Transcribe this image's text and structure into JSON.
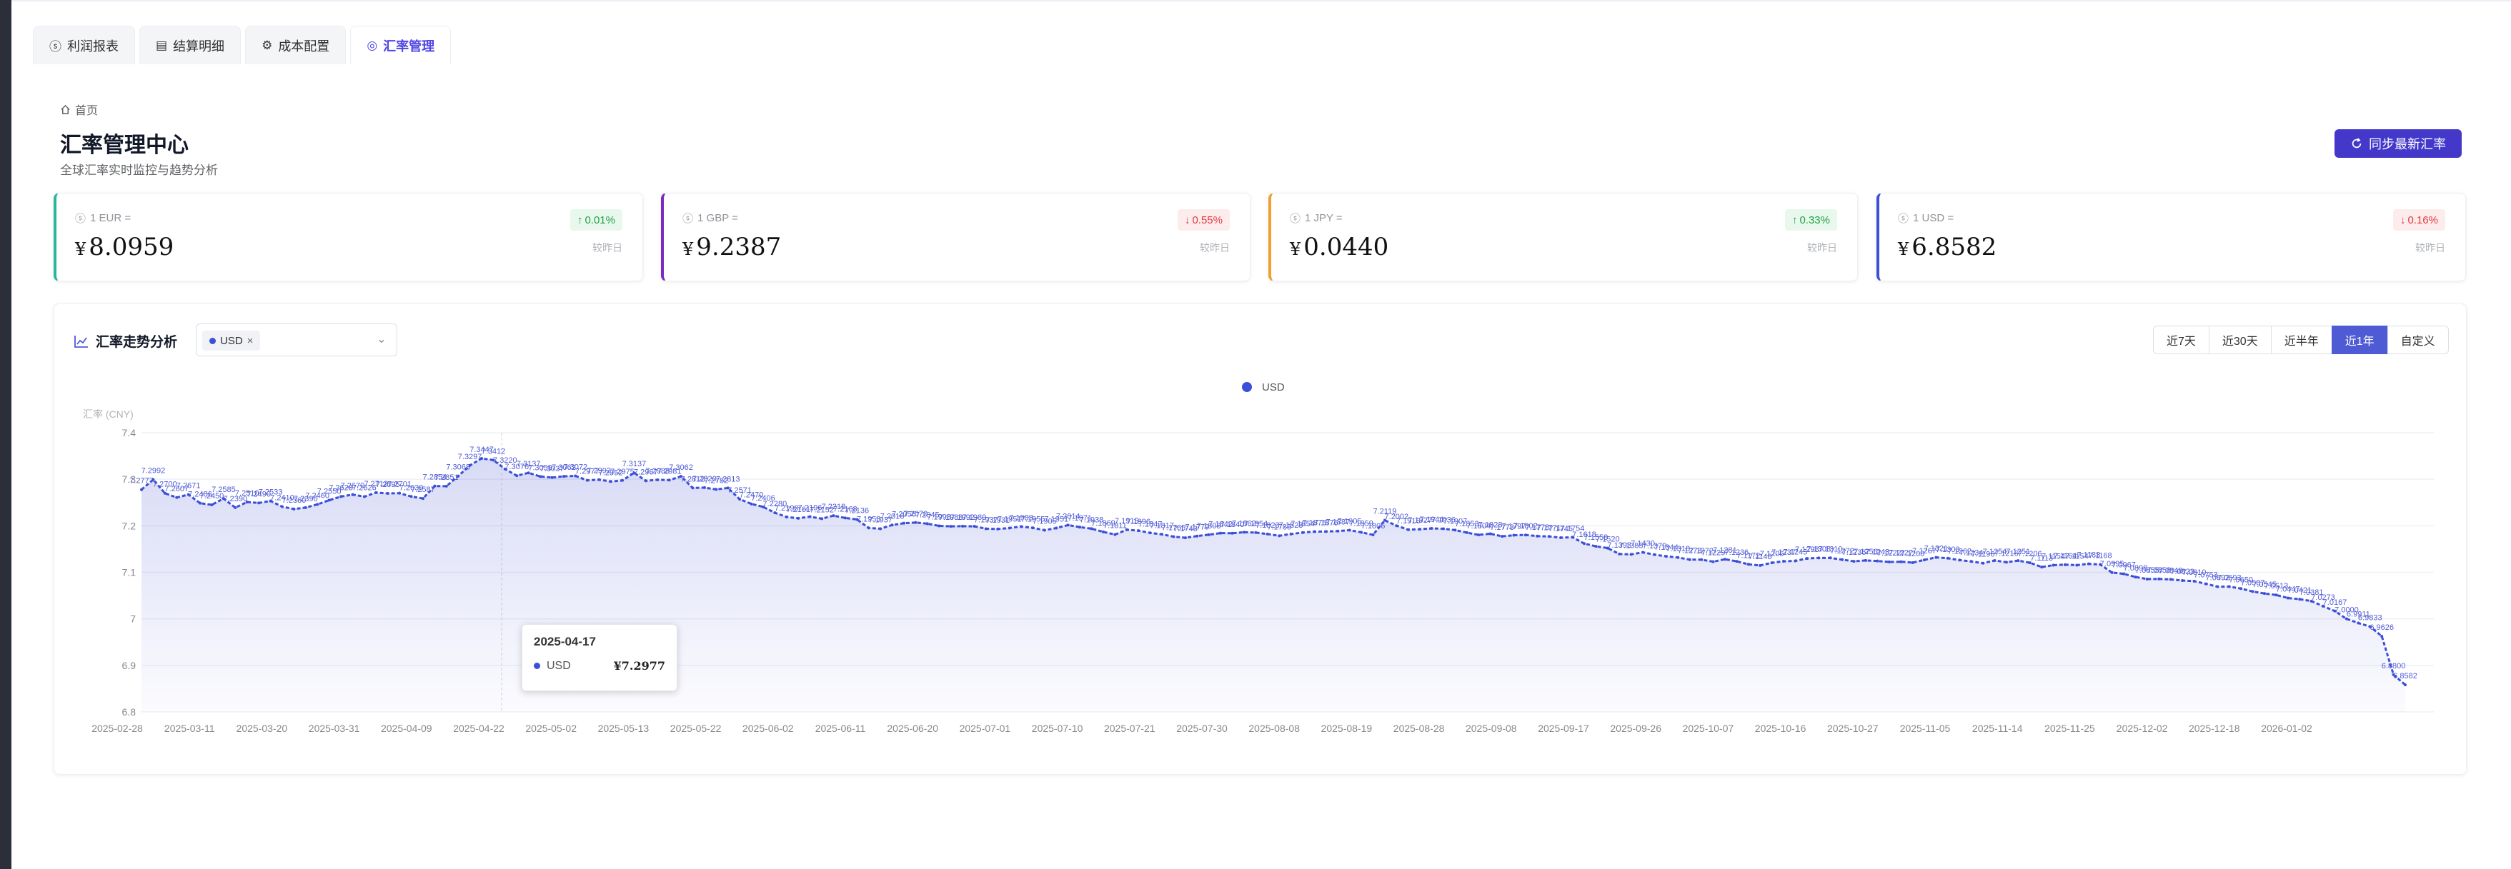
{
  "tabs": [
    {
      "label": "利润报表",
      "icon": "dollar-circle-icon"
    },
    {
      "label": "结算明细",
      "icon": "document-icon"
    },
    {
      "label": "成本配置",
      "icon": "gear-icon"
    },
    {
      "label": "汇率管理",
      "icon": "globe-icon",
      "active": true
    }
  ],
  "breadcrumb": {
    "home": "首页"
  },
  "header": {
    "title": "汇率管理中心",
    "subtitle": "全球汇率实时监控与趋势分析",
    "sync_label": "同步最新汇率"
  },
  "rate_cards": [
    {
      "label": "1 EUR =",
      "symbol": "¥",
      "value": "8.0959",
      "change": "0.01%",
      "direction": "up",
      "compare": "较昨日",
      "color": "#2bb5a0"
    },
    {
      "label": "1 GBP =",
      "symbol": "¥",
      "value": "9.2387",
      "change": "0.55%",
      "direction": "down",
      "compare": "较昨日",
      "color": "#7b2cbf"
    },
    {
      "label": "1 JPY =",
      "symbol": "¥",
      "value": "0.0440",
      "change": "0.33%",
      "direction": "up",
      "compare": "较昨日",
      "color": "#f0a030"
    },
    {
      "label": "1 USD =",
      "symbol": "¥",
      "value": "6.8582",
      "change": "0.16%",
      "direction": "down",
      "compare": "较昨日",
      "color": "#3b4fd9"
    }
  ],
  "chart_panel": {
    "title": "汇率走势分析",
    "selected_currency": "USD",
    "ranges": [
      "近7天",
      "近30天",
      "近半年",
      "近1年",
      "自定义"
    ],
    "active_range": "近1年"
  },
  "tooltip": {
    "date": "2025-04-17",
    "series": "USD",
    "value": "¥7.2977"
  },
  "chart_data": {
    "type": "area",
    "ylabel": "汇率 (CNY)",
    "ylim": [
      6.8,
      7.4
    ],
    "yticks": [
      "6.8",
      "6.9",
      "7",
      "7.1",
      "7.2",
      "7.3",
      "7.4"
    ],
    "xticks": [
      "2025-02-28",
      "2025-03-11",
      "2025-03-20",
      "2025-03-31",
      "2025-04-09",
      "2025-04-22",
      "2025-05-02",
      "2025-05-13",
      "2025-05-22",
      "2025-06-02",
      "2025-06-11",
      "2025-06-20",
      "2025-07-01",
      "2025-07-10",
      "2025-07-21",
      "2025-07-30",
      "2025-08-08",
      "2025-08-19",
      "2025-08-28",
      "2025-09-08",
      "2025-09-17",
      "2025-09-26",
      "2025-10-07",
      "2025-10-16",
      "2025-10-27",
      "2025-11-05",
      "2025-11-14",
      "2025-11-25",
      "2025-12-02",
      "2025-12-18",
      "2026-01-02"
    ],
    "legend": "top-center",
    "grid": true,
    "series": [
      {
        "name": "USD",
        "color": "#3b4fd9",
        "values": [
          7.2777,
          7.2992,
          7.27,
          7.2607,
          7.2671,
          7.2486,
          7.245,
          7.2585,
          7.239,
          7.251,
          7.249,
          7.2533,
          7.241,
          7.236,
          7.239,
          7.246,
          7.255,
          7.2628,
          7.267,
          7.2626,
          7.2712,
          7.2695,
          7.2701,
          7.263,
          7.2587,
          7.2854,
          7.2851,
          7.3068,
          7.3297,
          7.3447,
          7.3412,
          7.322,
          7.3076,
          7.3137,
          7.3059,
          7.3037,
          7.3062,
          7.3072,
          7.2977,
          7.2992,
          7.2952,
          7.2975,
          7.3137,
          7.2967,
          7.2988,
          7.2981,
          7.3062,
          7.2812,
          7.282,
          7.2782,
          7.2813,
          7.2571,
          7.247,
          7.2406,
          7.228,
          7.219,
          7.2161,
          7.2196,
          7.2152,
          7.2218,
          7.2168,
          7.2136,
          7.1953,
          7.1937,
          7.2016,
          7.2056,
          7.207,
          7.2045,
          7.1998,
          7.1988,
          7.1992,
          7.1989,
          7.1937,
          7.1931,
          7.1951,
          7.1983,
          7.1955,
          7.1905,
          7.1951,
          7.2014,
          7.1971,
          7.1938,
          7.1869,
          7.1811,
          7.1915,
          7.1896,
          7.1847,
          7.1817,
          7.1765,
          7.1743,
          7.1779,
          7.1808,
          7.1842,
          7.184,
          7.1862,
          7.1854,
          7.1823,
          7.1785,
          7.1823,
          7.1854,
          7.1875,
          7.1876,
          7.1887,
          7.1905,
          7.1859,
          7.1806,
          7.2119,
          7.2002,
          7.1916,
          7.1927,
          7.1944,
          7.1936,
          7.1907,
          7.1853,
          7.1804,
          7.1828,
          7.1773,
          7.1797,
          7.1802,
          7.1778,
          7.1771,
          7.1745,
          7.1754,
          7.1618,
          7.1558,
          7.152,
          7.1393,
          7.1385,
          7.143,
          7.1379,
          7.1344,
          7.1318,
          7.1273,
          7.1272,
          7.1229,
          7.1281,
          7.1236,
          7.1172,
          7.1148,
          7.1206,
          7.1237,
          7.1245,
          7.1298,
          7.1308,
          7.131,
          7.1272,
          7.1236,
          7.1256,
          7.1243,
          7.1222,
          7.1227,
          7.1208,
          7.1267,
          7.1321,
          7.1303,
          7.1262,
          7.1234,
          7.1196,
          7.1254,
          7.1216,
          7.1251,
          7.1206,
          7.1113,
          7.1154,
          7.1164,
          7.1154,
          7.1183,
          7.1168,
          7.0995,
          7.0967,
          7.0898,
          7.0855,
          7.0858,
          7.0848,
          7.0823,
          7.081,
          7.0753,
          7.0692,
          7.0693,
          7.065,
          7.0587,
          7.0545,
          7.0513,
          7.0447,
          7.0421,
          7.0381,
          7.0273,
          7.0167,
          7.0,
          6.9911,
          6.9833,
          6.9626,
          6.88,
          6.8582
        ]
      }
    ]
  }
}
